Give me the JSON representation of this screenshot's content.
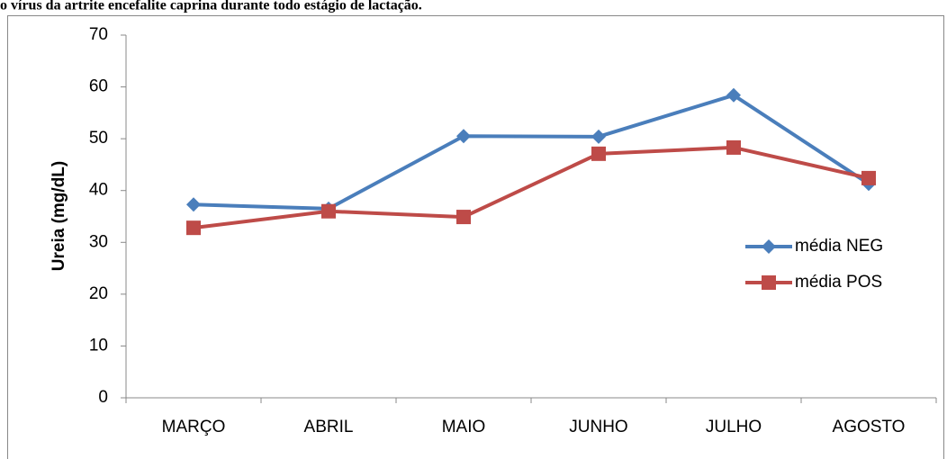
{
  "chart_data": {
    "type": "line",
    "title": "o vírus da artrite encefalite caprina durante todo estágio de lactação.",
    "y_label": "Ureia (mg/dL)",
    "categories": [
      "MARÇO",
      "ABRIL",
      "MAIO",
      "JUNHO",
      "JULHO",
      "AGOSTO"
    ],
    "series": [
      {
        "name": "média NEG",
        "color": "#4a7ebb",
        "marker": "diamond",
        "values": [
          37.3,
          36.5,
          50.5,
          50.4,
          58.4,
          41.3
        ]
      },
      {
        "name": "média POS",
        "color": "#be4b48",
        "marker": "square",
        "values": [
          32.8,
          36.0,
          34.9,
          47.1,
          48.3,
          42.4
        ]
      }
    ],
    "ylim": [
      0,
      70
    ],
    "yticks": [
      0,
      10,
      20,
      30,
      40,
      50,
      60,
      70
    ],
    "grid": false,
    "legend": "right"
  }
}
